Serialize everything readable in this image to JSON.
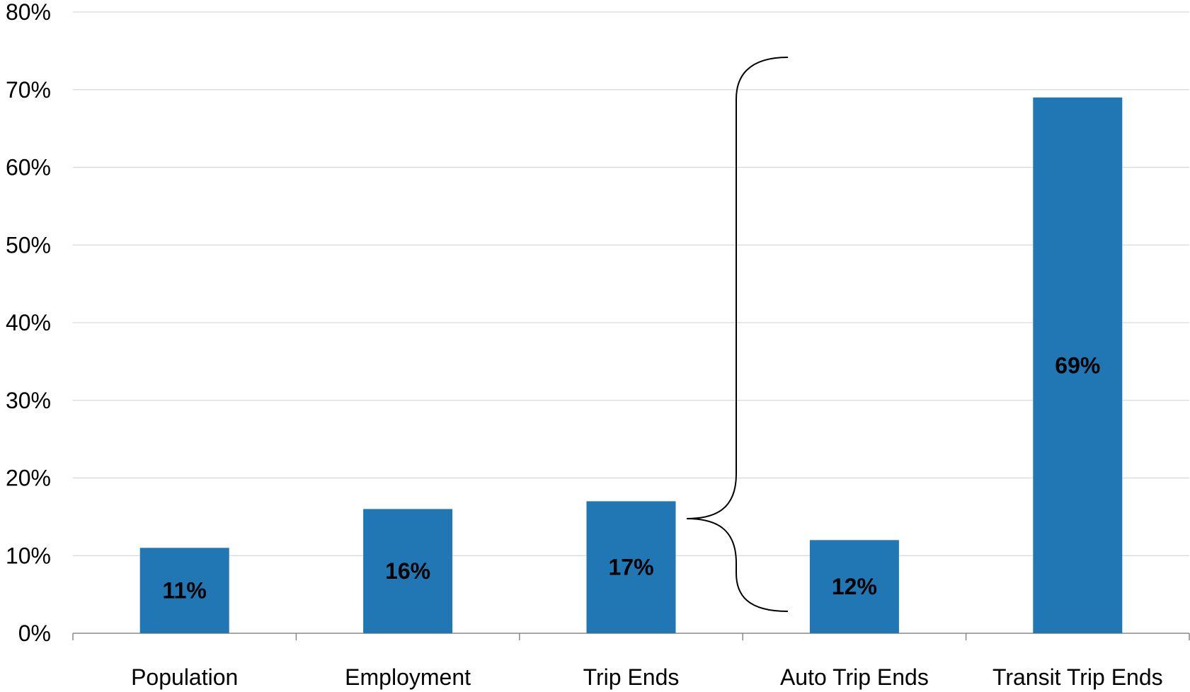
{
  "chart_data": {
    "type": "bar",
    "categories": [
      "Population",
      "Employment",
      "Trip Ends",
      "Auto Trip Ends",
      "Transit Trip Ends"
    ],
    "values": [
      11,
      16,
      17,
      12,
      69
    ],
    "data_labels": [
      "11%",
      "16%",
      "17%",
      "12%",
      "69%"
    ],
    "y_ticks": [
      "0%",
      "10%",
      "20%",
      "30%",
      "40%",
      "50%",
      "60%",
      "70%",
      "80%"
    ],
    "ylim": [
      0,
      80
    ],
    "grid": true,
    "legend": "none",
    "bar_color": "#2077b4",
    "annotation": "brace grouping Trip Ends into Auto Trip Ends and Transit Trip Ends"
  }
}
